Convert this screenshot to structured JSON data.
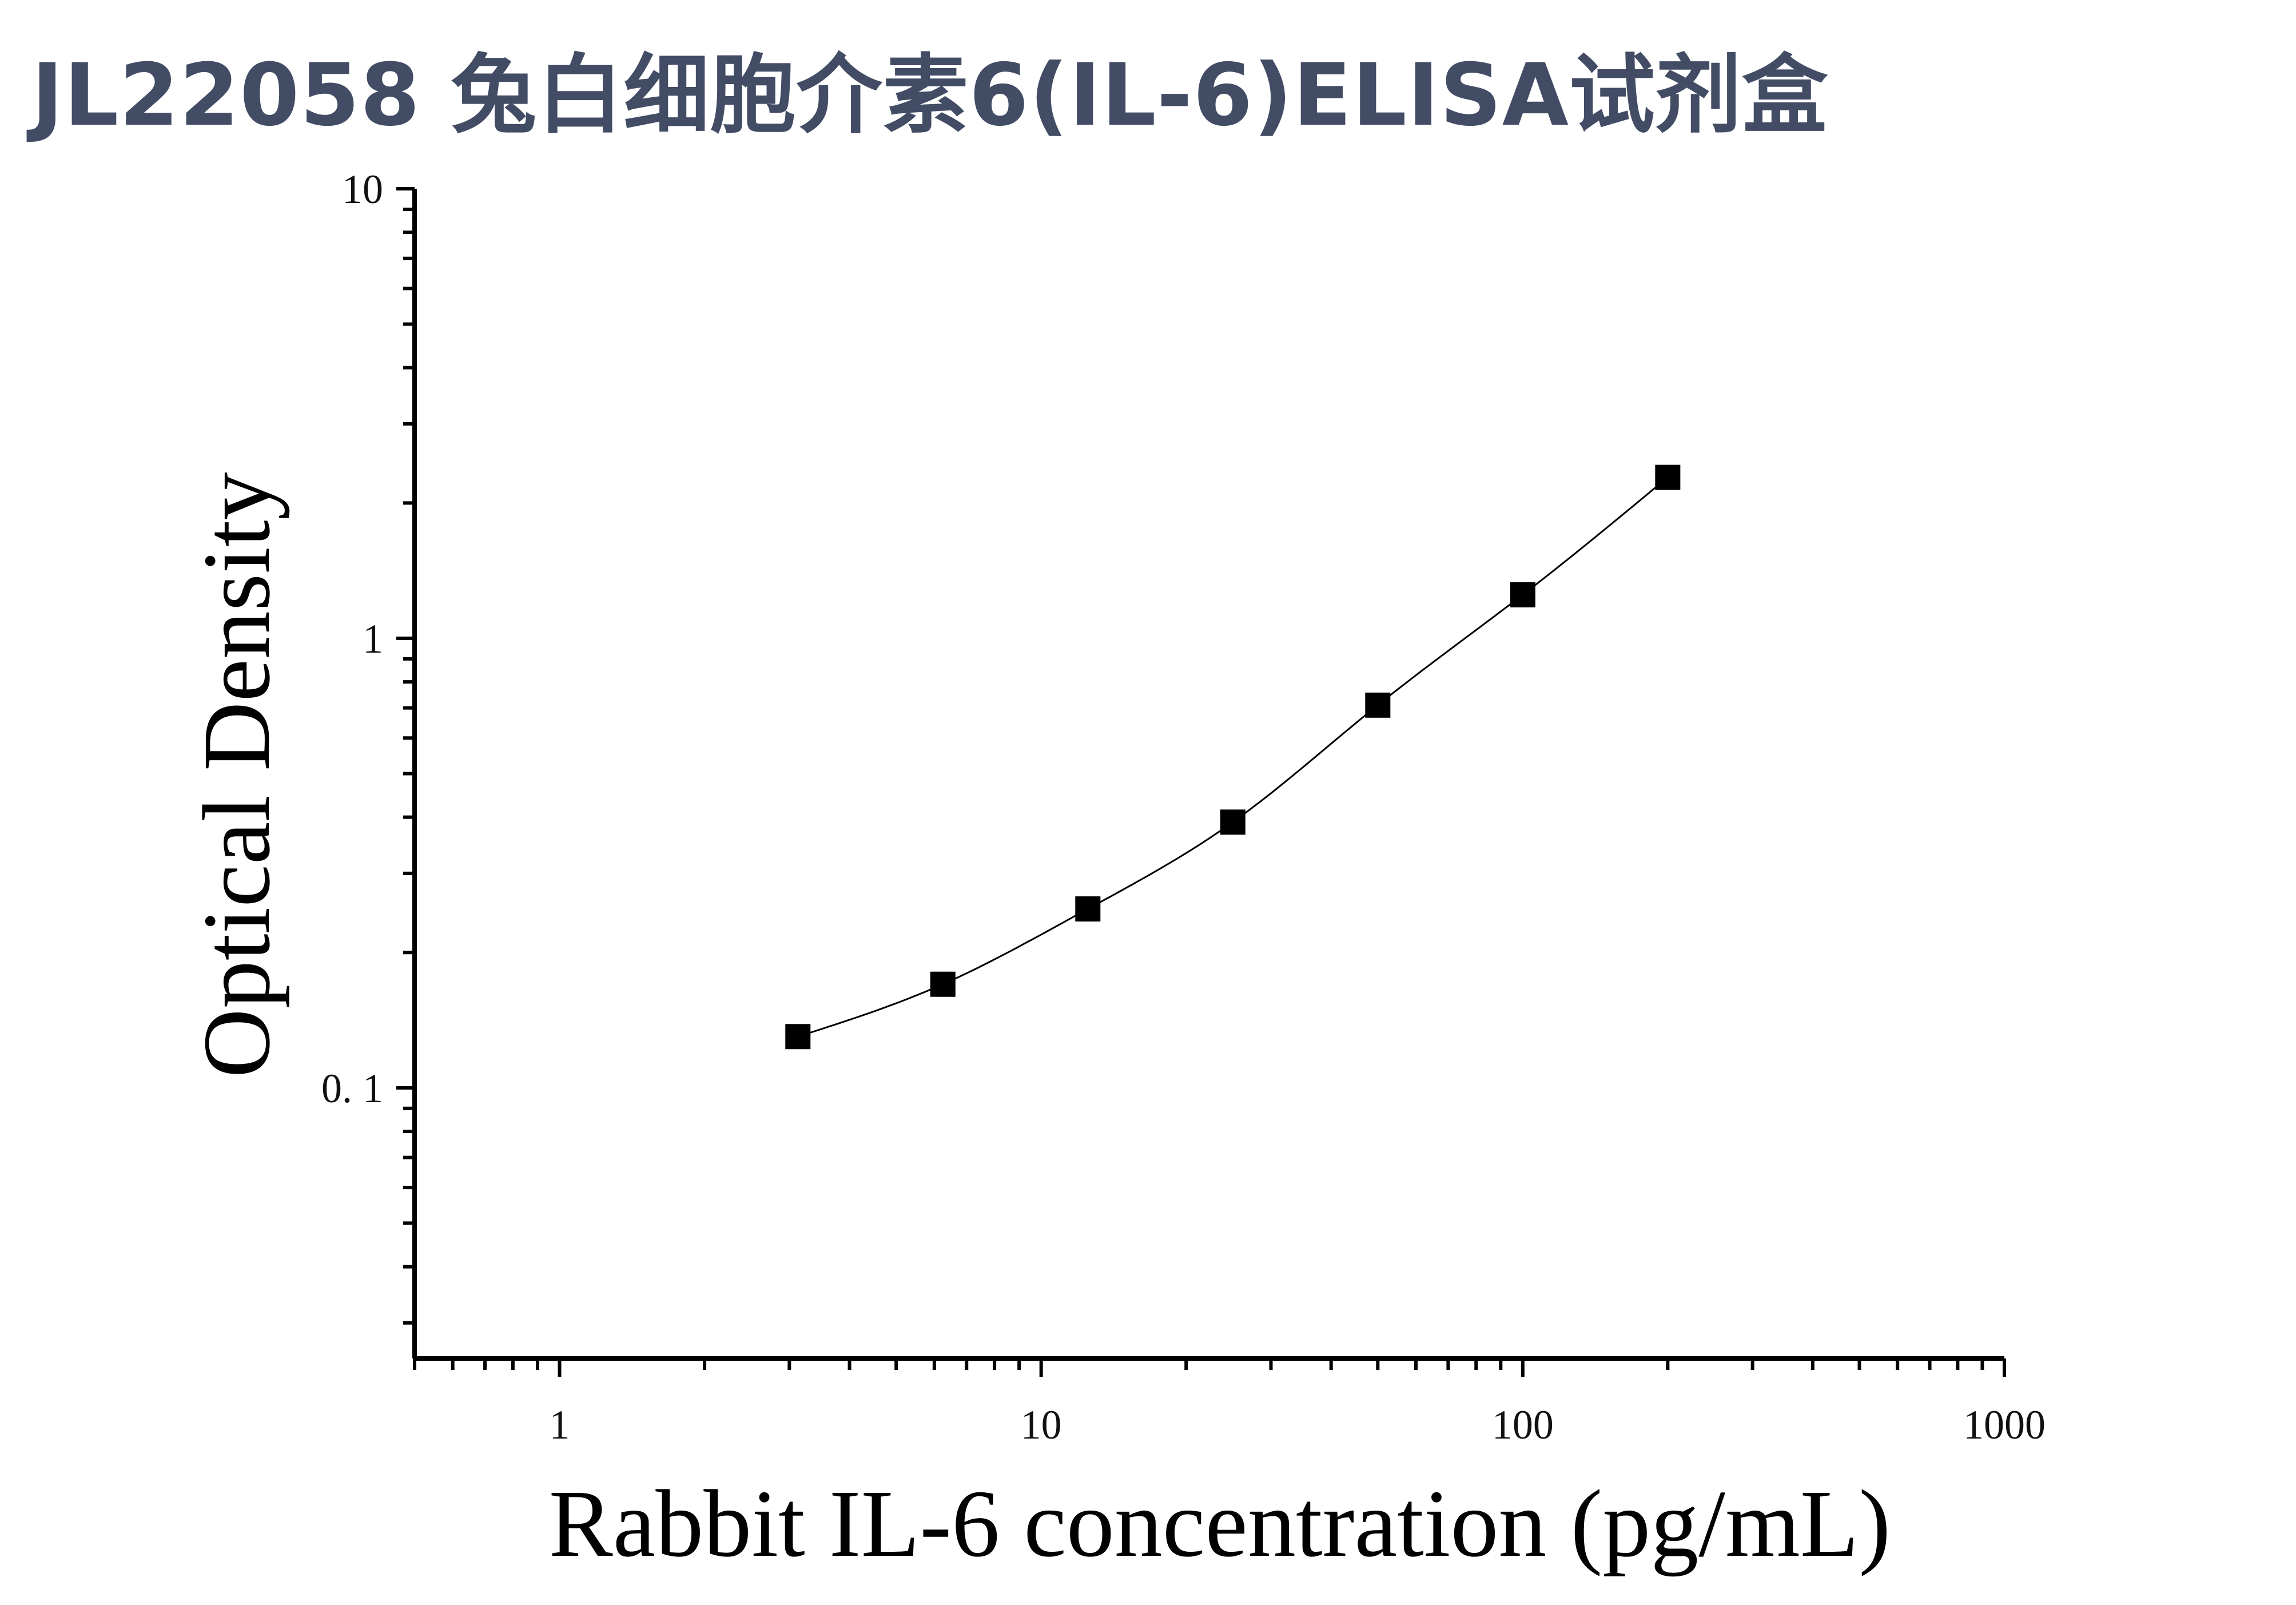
{
  "title": "JL22058 兔白细胞介素6(IL-6)ELISA试剂盒",
  "chart_data": {
    "type": "scatter",
    "xlabel": "Rabbit IL-6 concentration (pg/mL)",
    "ylabel": "Optical Density",
    "x_scale": "log",
    "y_scale": "log",
    "xlim": [
      0.5,
      1000
    ],
    "ylim": [
      0.025,
      10
    ],
    "x_ticks": [
      {
        "value": 1,
        "label": "1"
      },
      {
        "value": 10,
        "label": "10"
      },
      {
        "value": 100,
        "label": "100"
      },
      {
        "value": 1000,
        "label": "1000"
      }
    ],
    "y_ticks": [
      {
        "value": 0.1,
        "label": "0. 1"
      },
      {
        "value": 1,
        "label": "1"
      },
      {
        "value": 10,
        "label": "10"
      }
    ],
    "grid": false,
    "legend": false,
    "series": [
      {
        "x": [
          3.125,
          6.25,
          12.5,
          25,
          50,
          100,
          200
        ],
        "y": [
          0.13,
          0.17,
          0.25,
          0.39,
          0.71,
          1.25,
          2.28
        ],
        "marker": "square",
        "fit_line": true
      }
    ],
    "colors": {
      "marker": "#000000",
      "line": "#000000",
      "axis": "#000000",
      "title": "#434c65"
    }
  }
}
